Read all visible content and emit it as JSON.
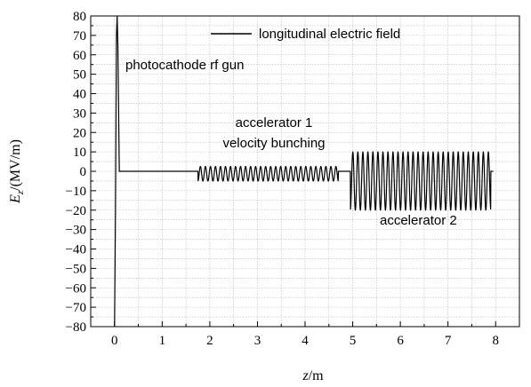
{
  "chart_data": {
    "type": "line",
    "xlabel_var": "z",
    "xlabel_unit": "/m",
    "ylabel_var": "E",
    "ylabel_sub": "z",
    "ylabel_unit": "/(MV/m)",
    "xlim": [
      -0.5,
      8.5
    ],
    "ylim": [
      -80,
      80
    ],
    "xticks": [
      0,
      1,
      2,
      3,
      4,
      5,
      6,
      7,
      8
    ],
    "yticks": [
      -80,
      -70,
      -60,
      -50,
      -40,
      -30,
      -20,
      -10,
      0,
      10,
      20,
      30,
      40,
      50,
      60,
      70,
      80
    ],
    "grid": true,
    "legend_placement": "top-right",
    "series": [
      {
        "name": "longitudinal electric field",
        "color": "#000000",
        "segments": [
          {
            "kind": "gun",
            "z_start": 0.0,
            "z_end": 0.1,
            "min": -80,
            "max": 80
          },
          {
            "kind": "flat",
            "z_start": 0.1,
            "z_end": 1.75,
            "value": 0
          },
          {
            "kind": "sine",
            "z_start": 1.75,
            "z_end": 4.7,
            "min": -5,
            "max": 2.5,
            "cycles": 28
          },
          {
            "kind": "flat",
            "z_start": 4.7,
            "z_end": 4.95,
            "value": 0
          },
          {
            "kind": "sine",
            "z_start": 4.95,
            "z_end": 7.9,
            "min": -20,
            "max": 10,
            "cycles": 28
          },
          {
            "kind": "flat",
            "z_start": 7.9,
            "z_end": 7.95,
            "value": 0
          }
        ]
      }
    ],
    "annotations": {
      "gun": "photocathode rf gun",
      "acc1_line1": "accelerator 1",
      "acc1_line2": "velocity bunching",
      "acc2": "accelerator 2"
    }
  }
}
